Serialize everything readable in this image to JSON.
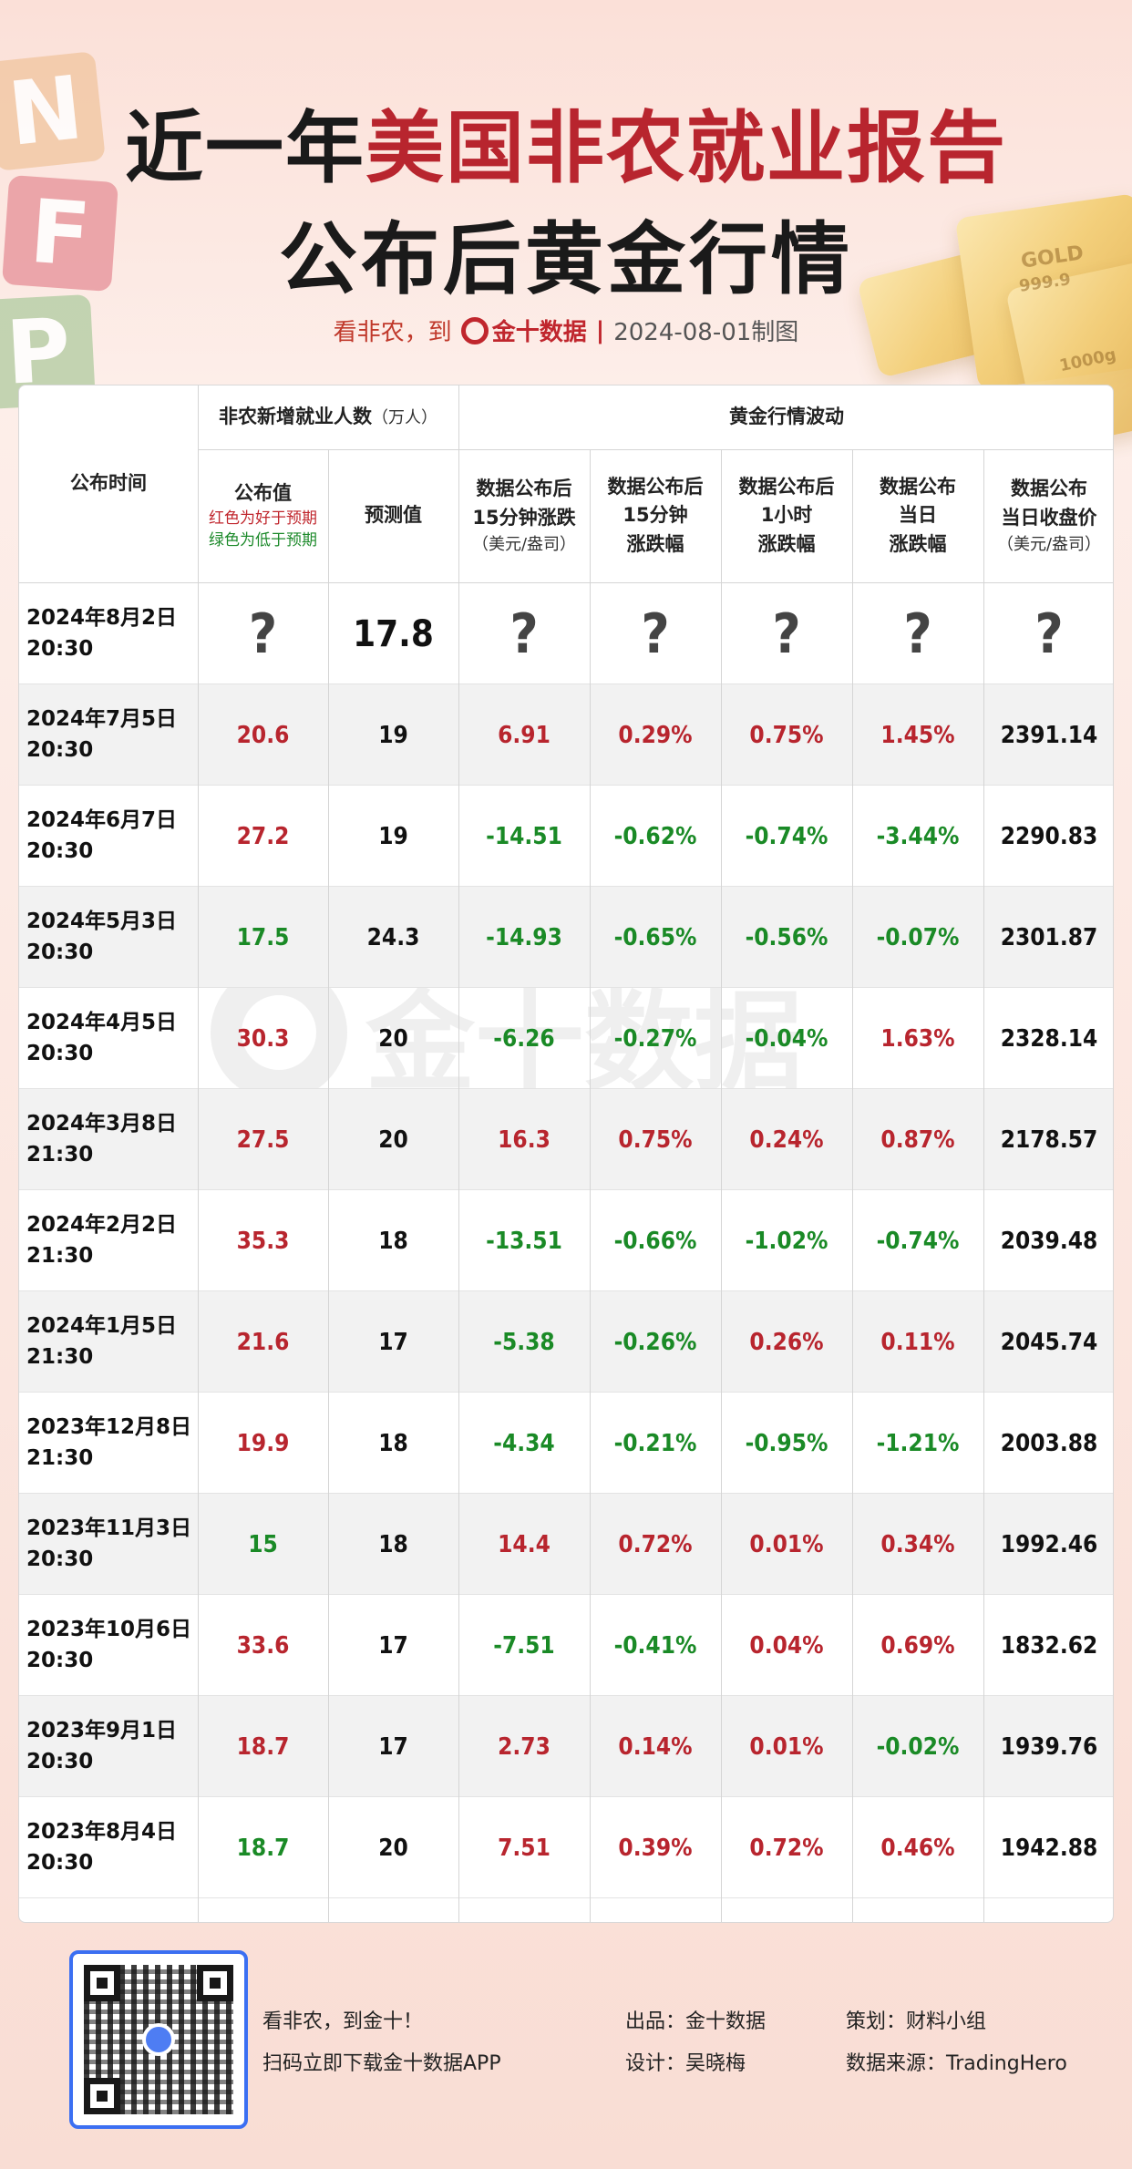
{
  "header": {
    "title_prefix": "近一年",
    "title_highlight": "美国非农就业报告",
    "title_line2": "公布后黄金行情",
    "subtitle_left": "看非农，到",
    "subtitle_brand": "金十数据",
    "subtitle_date": "2024-08-01制图",
    "deco_letters": [
      "N",
      "F",
      "P"
    ],
    "gold_labels": [
      "GOLD",
      "999.9",
      "1000g"
    ]
  },
  "table": {
    "col_time": "公布时间",
    "group_nfp": "非农新增就业人数",
    "group_nfp_unit": "（万人）",
    "group_gold": "黄金行情波动",
    "col_actual": "公布值",
    "legend_red": "红色为好于预期",
    "legend_green": "绿色为低于预期",
    "col_forecast": "预测值",
    "col_15m_change": [
      "数据公布后",
      "15分钟涨跌",
      "（美元/盎司）"
    ],
    "col_15m_pct": [
      "数据公布后",
      "15分钟",
      "涨跌幅"
    ],
    "col_1h_pct": [
      "数据公布后",
      "1小时",
      "涨跌幅"
    ],
    "col_day_pct": [
      "数据公布",
      "当日",
      "涨跌幅"
    ],
    "col_close": [
      "数据公布",
      "当日收盘价",
      "（美元/盎司）"
    ],
    "rows": [
      {
        "date": "2024年8月2日",
        "time": "20:30",
        "actual": "?",
        "forecast": "17.8",
        "c15": "?",
        "p15": "?",
        "p1h": "?",
        "pd": "?",
        "close": "?",
        "actual_c": "q",
        "c15_c": "q",
        "p15_c": "q",
        "p1h_c": "q",
        "pd_c": "q"
      },
      {
        "date": "2024年7月5日",
        "time": "20:30",
        "actual": "20.6",
        "forecast": "19",
        "c15": "6.91",
        "p15": "0.29%",
        "p1h": "0.75%",
        "pd": "1.45%",
        "close": "2391.14",
        "actual_c": "red",
        "c15_c": "red",
        "p15_c": "red",
        "p1h_c": "red",
        "pd_c": "red"
      },
      {
        "date": "2024年6月7日",
        "time": "20:30",
        "actual": "27.2",
        "forecast": "19",
        "c15": "-14.51",
        "p15": "-0.62%",
        "p1h": "-0.74%",
        "pd": "-3.44%",
        "close": "2290.83",
        "actual_c": "red",
        "c15_c": "green",
        "p15_c": "green",
        "p1h_c": "green",
        "pd_c": "green"
      },
      {
        "date": "2024年5月3日",
        "time": "20:30",
        "actual": "17.5",
        "forecast": "24.3",
        "c15": "-14.93",
        "p15": "-0.65%",
        "p1h": "-0.56%",
        "pd": "-0.07%",
        "close": "2301.87",
        "actual_c": "green",
        "c15_c": "green",
        "p15_c": "green",
        "p1h_c": "green",
        "pd_c": "green"
      },
      {
        "date": "2024年4月5日",
        "time": "20:30",
        "actual": "30.3",
        "forecast": "20",
        "c15": "-6.26",
        "p15": "-0.27%",
        "p1h": "-0.04%",
        "pd": "1.63%",
        "close": "2328.14",
        "actual_c": "red",
        "c15_c": "green",
        "p15_c": "green",
        "p1h_c": "green",
        "pd_c": "red"
      },
      {
        "date": "2024年3月8日",
        "time": "21:30",
        "actual": "27.5",
        "forecast": "20",
        "c15": "16.3",
        "p15": "0.75%",
        "p1h": "0.24%",
        "pd": "0.87%",
        "close": "2178.57",
        "actual_c": "red",
        "c15_c": "red",
        "p15_c": "red",
        "p1h_c": "red",
        "pd_c": "red"
      },
      {
        "date": "2024年2月2日",
        "time": "21:30",
        "actual": "35.3",
        "forecast": "18",
        "c15": "-13.51",
        "p15": "-0.66%",
        "p1h": "-1.02%",
        "pd": "-0.74%",
        "close": "2039.48",
        "actual_c": "red",
        "c15_c": "green",
        "p15_c": "green",
        "p1h_c": "green",
        "pd_c": "green"
      },
      {
        "date": "2024年1月5日",
        "time": "21:30",
        "actual": "21.6",
        "forecast": "17",
        "c15": "-5.38",
        "p15": "-0.26%",
        "p1h": "0.26%",
        "pd": "0.11%",
        "close": "2045.74",
        "actual_c": "red",
        "c15_c": "green",
        "p15_c": "green",
        "p1h_c": "red",
        "pd_c": "red"
      },
      {
        "date": "2023年12月8日",
        "time": "21:30",
        "actual": "19.9",
        "forecast": "18",
        "c15": "-4.34",
        "p15": "-0.21%",
        "p1h": "-0.95%",
        "pd": "-1.21%",
        "close": "2003.88",
        "actual_c": "red",
        "c15_c": "green",
        "p15_c": "green",
        "p1h_c": "green",
        "pd_c": "green"
      },
      {
        "date": "2023年11月3日",
        "time": "20:30",
        "actual": "15",
        "forecast": "18",
        "c15": "14.4",
        "p15": "0.72%",
        "p1h": "0.01%",
        "pd": "0.34%",
        "close": "1992.46",
        "actual_c": "green",
        "c15_c": "red",
        "p15_c": "red",
        "p1h_c": "red",
        "pd_c": "red"
      },
      {
        "date": "2023年10月6日",
        "time": "20:30",
        "actual": "33.6",
        "forecast": "17",
        "c15": "-7.51",
        "p15": "-0.41%",
        "p1h": "0.04%",
        "pd": "0.69%",
        "close": "1832.62",
        "actual_c": "red",
        "c15_c": "green",
        "p15_c": "green",
        "p1h_c": "red",
        "pd_c": "red"
      },
      {
        "date": "2023年9月1日",
        "time": "20:30",
        "actual": "18.7",
        "forecast": "17",
        "c15": "2.73",
        "p15": "0.14%",
        "p1h": "0.01%",
        "pd": "-0.02%",
        "close": "1939.76",
        "actual_c": "red",
        "c15_c": "red",
        "p15_c": "red",
        "p1h_c": "red",
        "pd_c": "green"
      },
      {
        "date": "2023年8月4日",
        "time": "20:30",
        "actual": "18.7",
        "forecast": "20",
        "c15": "7.51",
        "p15": "0.39%",
        "p1h": "0.72%",
        "pd": "0.46%",
        "close": "1942.88",
        "actual_c": "green",
        "c15_c": "red",
        "p15_c": "red",
        "p1h_c": "red",
        "pd_c": "red"
      }
    ]
  },
  "watermark": "金十数据",
  "footer": {
    "slogan1": "看非农，到金十！",
    "slogan2": "扫码立即下载金十数据APP",
    "producer": "出品：金十数据",
    "designer": "设计：吴晓梅",
    "planner": "策划：财料小组",
    "source": "数据来源：TradingHero"
  },
  "colors": {
    "red": "#b8252e",
    "green": "#1a8a26",
    "accent_blue": "#3b6ff2"
  }
}
